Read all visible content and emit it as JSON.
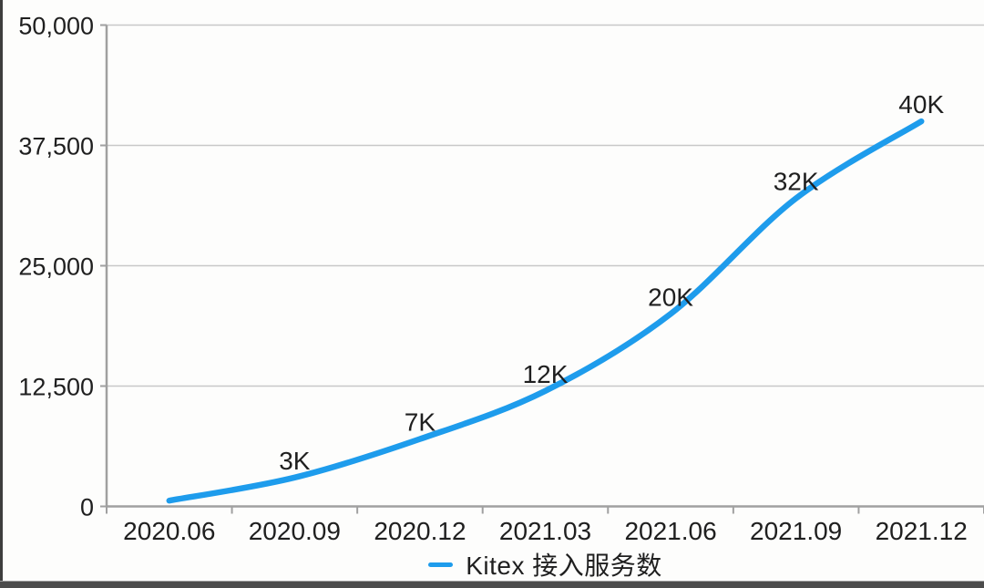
{
  "chart_data": {
    "type": "line",
    "title": "",
    "categories": [
      "2020.06",
      "2020.09",
      "2020.12",
      "2021.03",
      "2021.06",
      "2021.09",
      "2021.12"
    ],
    "series": [
      {
        "name": "Kitex 接入服务数",
        "values": [
          600,
          3000,
          7000,
          12000,
          20000,
          32000,
          40000
        ],
        "color": "#1e9cec"
      }
    ],
    "point_labels": [
      "",
      "3K",
      "7K",
      "12K",
      "20K",
      "32K",
      "40K"
    ],
    "y_ticks": [
      0,
      12500,
      25000,
      37500,
      50000
    ],
    "y_tick_labels": [
      "0",
      "12,500",
      "25,000",
      "37,500",
      "50,000"
    ],
    "ylim": [
      0,
      50000
    ],
    "grid": "horizontal",
    "legend_position": "bottom"
  },
  "legend": {
    "label": "Kitex 接入服务数"
  },
  "colors": {
    "line": "#1e9cec",
    "gridline": "#c8c8c8",
    "axis": "#a0a0a0",
    "text": "#1f1f1f",
    "background": "#fdfdfc",
    "frame_edge": "#4c4c4c"
  }
}
